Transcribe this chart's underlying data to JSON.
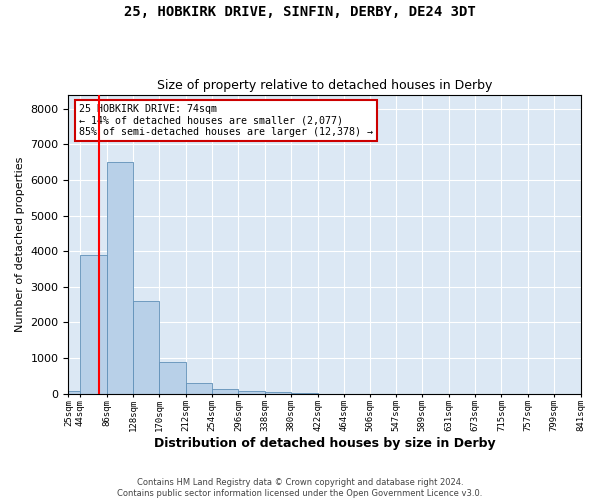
{
  "title1": "25, HOBKIRK DRIVE, SINFIN, DERBY, DE24 3DT",
  "title2": "Size of property relative to detached houses in Derby",
  "xlabel": "Distribution of detached houses by size in Derby",
  "ylabel": "Number of detached properties",
  "annotation_title": "25 HOBKIRK DRIVE: 74sqm",
  "annotation_line1": "← 14% of detached houses are smaller (2,077)",
  "annotation_line2": "85% of semi-detached houses are larger (12,378) →",
  "footer1": "Contains HM Land Registry data © Crown copyright and database right 2024.",
  "footer2": "Contains public sector information licensed under the Open Government Licence v3.0.",
  "bar_color": "#b8d0e8",
  "bar_edge_color": "#6090b8",
  "redline_x": 74,
  "bin_edges": [
    25,
    44,
    86,
    128,
    170,
    212,
    254,
    296,
    338,
    380,
    422,
    464,
    506,
    547,
    589,
    631,
    673,
    715,
    757,
    799,
    841
  ],
  "bin_labels": [
    "25sqm",
    "44sqm",
    "86sqm",
    "128sqm",
    "170sqm",
    "212sqm",
    "254sqm",
    "296sqm",
    "338sqm",
    "380sqm",
    "422sqm",
    "464sqm",
    "506sqm",
    "547sqm",
    "589sqm",
    "631sqm",
    "673sqm",
    "715sqm",
    "757sqm",
    "799sqm",
    "841sqm"
  ],
  "bar_heights": [
    70,
    3900,
    6500,
    2600,
    900,
    300,
    120,
    80,
    60,
    10,
    0,
    0,
    0,
    0,
    0,
    0,
    0,
    0,
    0,
    0
  ],
  "ylim": [
    0,
    8400
  ],
  "yticks": [
    0,
    1000,
    2000,
    3000,
    4000,
    5000,
    6000,
    7000,
    8000
  ],
  "background_color": "#dce8f4",
  "fig_background": "#ffffff",
  "annotation_box_color": "#ffffff",
  "annotation_box_edge": "#cc0000"
}
